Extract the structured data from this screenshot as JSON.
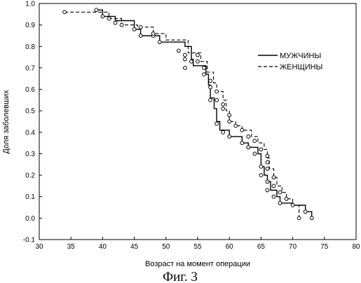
{
  "chart_data": {
    "type": "line",
    "title": "",
    "xlabel": "Возраст на момент операции",
    "ylabel": "Доля заболевших",
    "xlim": [
      30,
      80
    ],
    "ylim": [
      -0.1,
      1.0
    ],
    "x_ticks": [
      30,
      35,
      40,
      45,
      50,
      55,
      60,
      65,
      70,
      75,
      80
    ],
    "y_ticks": [
      -0.1,
      0.0,
      0.1,
      0.2,
      0.3,
      0.4,
      0.5,
      0.6,
      0.7,
      0.8,
      0.9,
      1.0
    ],
    "grid": false,
    "legend_position": "top-right",
    "step_style": "post",
    "series": [
      {
        "name": "МУЖЧИНЫ",
        "line_style": "solid",
        "color": "#000000",
        "points": [
          [
            39,
            0.97
          ],
          [
            40,
            0.94
          ],
          [
            42,
            0.92
          ],
          [
            45,
            0.88
          ],
          [
            46,
            0.85
          ],
          [
            49,
            0.82
          ],
          [
            53,
            0.8
          ],
          [
            54,
            0.74
          ],
          [
            54.3,
            0.71
          ],
          [
            56.3,
            0.67
          ],
          [
            56.7,
            0.62
          ],
          [
            57,
            0.56
          ],
          [
            57.6,
            0.51
          ],
          [
            58,
            0.45
          ],
          [
            58.5,
            0.41
          ],
          [
            60,
            0.38
          ],
          [
            62,
            0.35
          ],
          [
            63,
            0.33
          ],
          [
            64.5,
            0.3
          ],
          [
            65,
            0.24
          ],
          [
            65.5,
            0.2
          ],
          [
            66,
            0.17
          ],
          [
            66.5,
            0.13
          ],
          [
            67.5,
            0.1
          ],
          [
            68,
            0.07
          ],
          [
            70,
            0.06
          ],
          [
            72,
            0.03
          ],
          [
            73,
            0.0
          ]
        ],
        "markers": [
          [
            39.0,
            0.97
          ],
          [
            40.0,
            0.94
          ],
          [
            42.0,
            0.91
          ],
          [
            45.0,
            0.88
          ],
          [
            46.0,
            0.85
          ],
          [
            48.0,
            0.85
          ],
          [
            49.0,
            0.82
          ],
          [
            53.0,
            0.76
          ],
          [
            54.0,
            0.73
          ],
          [
            56.0,
            0.67
          ],
          [
            57.0,
            0.61
          ],
          [
            57.0,
            0.55
          ],
          [
            58.0,
            0.44
          ],
          [
            59.0,
            0.4
          ],
          [
            60.0,
            0.38
          ],
          [
            62.0,
            0.35
          ],
          [
            63.0,
            0.33
          ],
          [
            64.0,
            0.3
          ],
          [
            65.0,
            0.24
          ],
          [
            65.0,
            0.2
          ],
          [
            66.0,
            0.17
          ],
          [
            66.0,
            0.13
          ],
          [
            67.0,
            0.1
          ],
          [
            68.0,
            0.07
          ],
          [
            72.0,
            0.03
          ],
          [
            73.0,
            0.0
          ]
        ]
      },
      {
        "name": "ЖЕНЩИНЫ",
        "line_style": "dashed",
        "color": "#000000",
        "points": [
          [
            34,
            0.96
          ],
          [
            41,
            0.93
          ],
          [
            43,
            0.9
          ],
          [
            45.5,
            0.89
          ],
          [
            48,
            0.86
          ],
          [
            50,
            0.83
          ],
          [
            53.5,
            0.77
          ],
          [
            55.5,
            0.73
          ],
          [
            56.5,
            0.68
          ],
          [
            57.5,
            0.63
          ],
          [
            58,
            0.59
          ],
          [
            59,
            0.55
          ],
          [
            59.5,
            0.5
          ],
          [
            60,
            0.45
          ],
          [
            61,
            0.43
          ],
          [
            62,
            0.41
          ],
          [
            63.5,
            0.38
          ],
          [
            64.5,
            0.35
          ],
          [
            65.5,
            0.32
          ],
          [
            66,
            0.28
          ],
          [
            66.3,
            0.23
          ],
          [
            67,
            0.19
          ],
          [
            67.5,
            0.15
          ],
          [
            68.3,
            0.12
          ],
          [
            69,
            0.09
          ],
          [
            70,
            0.06
          ],
          [
            71,
            0.0
          ]
        ],
        "markers": [
          [
            34.0,
            0.96
          ],
          [
            41.0,
            0.93
          ],
          [
            43.0,
            0.9
          ],
          [
            46.0,
            0.89
          ],
          [
            48.0,
            0.86
          ],
          [
            52.0,
            0.78
          ],
          [
            53.0,
            0.74
          ],
          [
            53.0,
            0.7
          ],
          [
            55.0,
            0.76
          ],
          [
            55.0,
            0.73
          ],
          [
            56.0,
            0.7
          ],
          [
            57.0,
            0.64
          ],
          [
            58.0,
            0.59
          ],
          [
            58.0,
            0.55
          ],
          [
            59.0,
            0.53
          ],
          [
            59.0,
            0.51
          ],
          [
            60.0,
            0.48
          ],
          [
            60.0,
            0.45
          ],
          [
            61.0,
            0.43
          ],
          [
            62.0,
            0.41
          ],
          [
            63.0,
            0.38
          ],
          [
            64.0,
            0.36
          ],
          [
            65.0,
            0.32
          ],
          [
            66.0,
            0.29
          ],
          [
            66.0,
            0.26
          ],
          [
            66.0,
            0.23
          ],
          [
            67.0,
            0.19
          ],
          [
            67.0,
            0.15
          ],
          [
            68.0,
            0.12
          ],
          [
            69.0,
            0.09
          ],
          [
            70.0,
            0.06
          ],
          [
            71.0,
            0.0
          ]
        ]
      }
    ]
  },
  "figure": {
    "caption": "Фиг. 3"
  }
}
